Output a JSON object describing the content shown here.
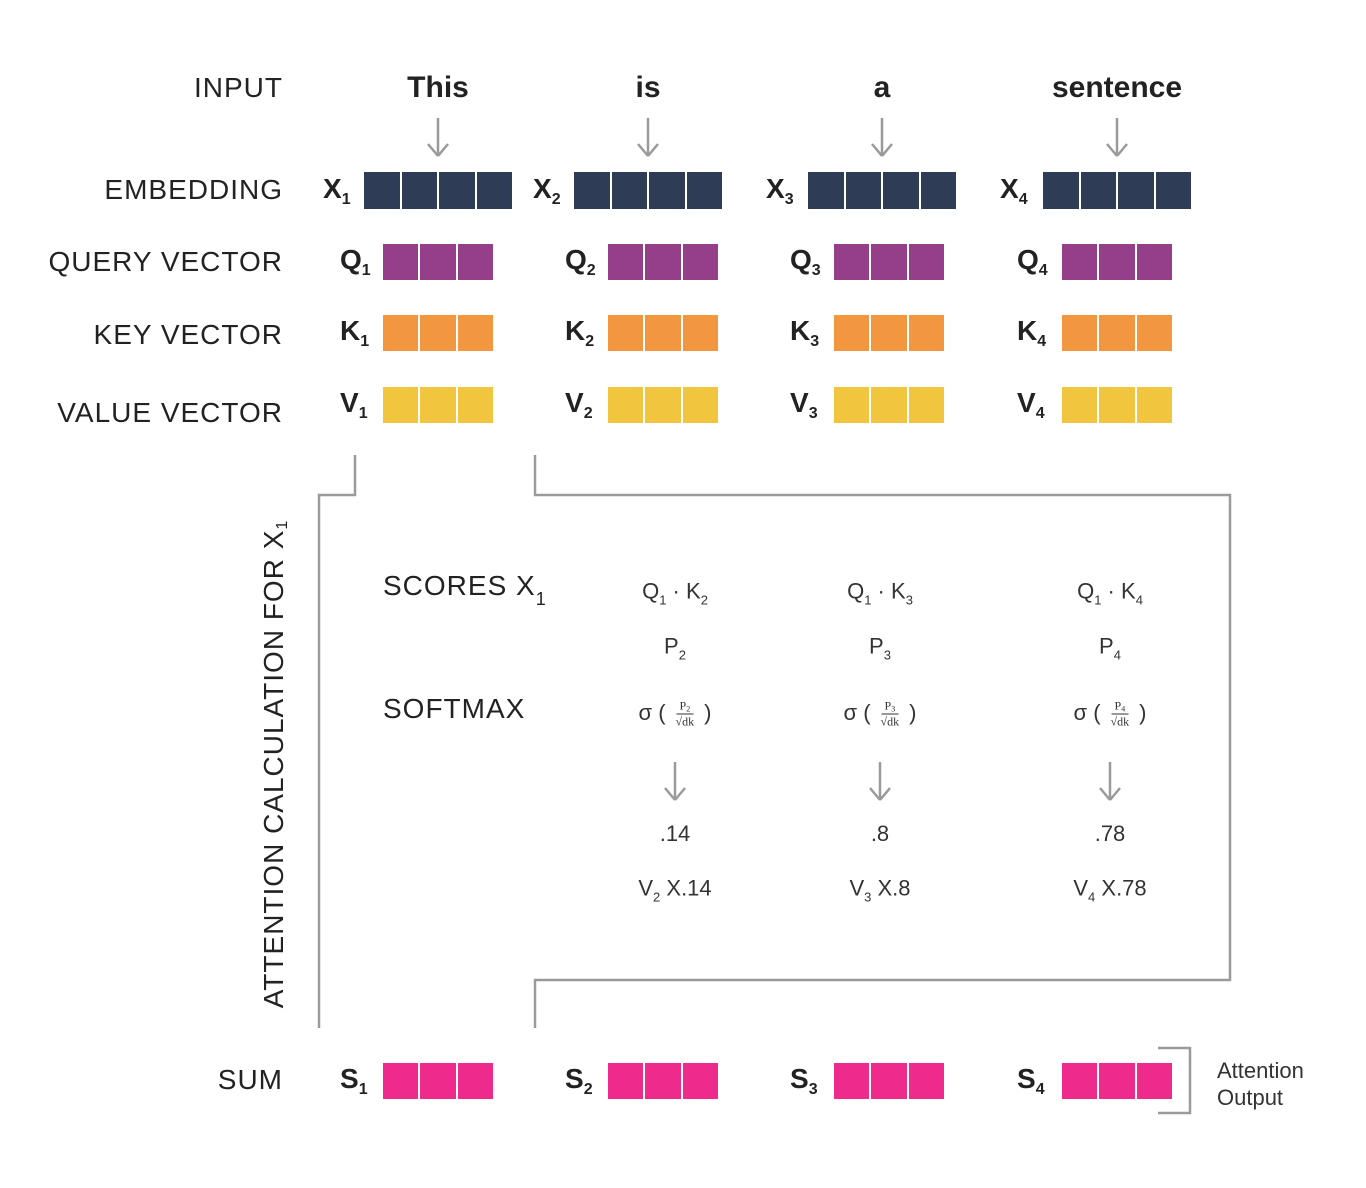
{
  "row_labels": {
    "input": "INPUT",
    "embedding": "EMBEDDING",
    "query": "QUERY VECTOR",
    "key": "KEY VECTOR",
    "value": "VALUE VECTOR",
    "sum": "SUM"
  },
  "words": [
    "This",
    "is",
    "a",
    "sentence"
  ],
  "vectors": {
    "embedding": {
      "letter": "X",
      "subs": [
        "1",
        "2",
        "3",
        "4"
      ],
      "color": "#2e3d55"
    },
    "query": {
      "letter": "Q",
      "subs": [
        "1",
        "2",
        "3",
        "4"
      ],
      "color": "#953f8a"
    },
    "key": {
      "letter": "K",
      "subs": [
        "1",
        "2",
        "3",
        "4"
      ],
      "color": "#f39640"
    },
    "value": {
      "letter": "V",
      "subs": [
        "1",
        "2",
        "3",
        "4"
      ],
      "color": "#f2c53f"
    },
    "sum": {
      "letter": "S",
      "subs": [
        "1",
        "2",
        "3",
        "4"
      ],
      "color": "#ee2a8c"
    }
  },
  "attention": {
    "title": "ATTENTION CALCULATION FOR X",
    "title_sub": "1",
    "scores_label": "SCORES",
    "scores_x": "X",
    "scores_x_sub": "1",
    "softmax_label": "SOFTMAX",
    "columns": [
      {
        "q": "Q",
        "q_sub": "1",
        "k": "K",
        "k_sub": "2",
        "p": "P",
        "p_sub": "2",
        "sigma": "σ (",
        "frac_den": "√dk",
        "close": ")",
        "value": ".14",
        "v": "V",
        "v_sub": "2",
        "v_mult": "X.14"
      },
      {
        "q": "Q",
        "q_sub": "1",
        "k": "K",
        "k_sub": "3",
        "p": "P",
        "p_sub": "3",
        "sigma": "σ (",
        "frac_den": "√dk",
        "close": ")",
        "value": ".8",
        "v": "V",
        "v_sub": "3",
        "v_mult": "X.8"
      },
      {
        "q": "Q",
        "q_sub": "1",
        "k": "K",
        "k_sub": "4",
        "p": "P",
        "p_sub": "4",
        "sigma": "σ (",
        "frac_den": "√dk",
        "close": ")",
        "value": ".78",
        "v": "V",
        "v_sub": "4",
        "v_mult": "X.78"
      }
    ]
  },
  "output_label": [
    "Attention",
    "Output"
  ],
  "line_color": "#9a9a9a"
}
